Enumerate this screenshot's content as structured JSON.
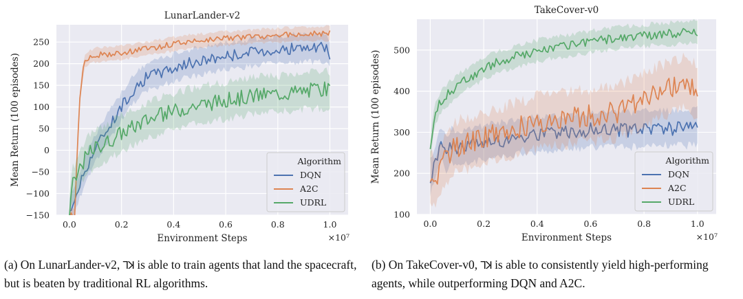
{
  "chart_data": [
    {
      "type": "line",
      "title": "LunarLander-v2",
      "xlabel": "Environment Steps",
      "ylabel": "Mean Return (100 episodes)",
      "x_multiplier_label": "×10⁷",
      "xlim": [
        -0.05,
        1.07
      ],
      "ylim": [
        -150,
        290
      ],
      "xticks": [
        0.0,
        0.2,
        0.4,
        0.6,
        0.8,
        1.0
      ],
      "xtick_labels": [
        "0.0",
        "0.2",
        "0.4",
        "0.6",
        "0.8",
        "1.0"
      ],
      "yticks": [
        -150,
        -100,
        -50,
        0,
        50,
        100,
        150,
        200,
        250
      ],
      "ytick_labels": [
        "−150",
        "−100",
        "−50",
        "0",
        "50",
        "100",
        "150",
        "200",
        "250"
      ],
      "legend": {
        "title": "Algorithm",
        "position": "lower-right"
      },
      "series": [
        {
          "name": "DQN",
          "color": "#4c72b0",
          "band": 30,
          "x": [
            0.0,
            0.02,
            0.04,
            0.06,
            0.08,
            0.1,
            0.12,
            0.14,
            0.16,
            0.18,
            0.2,
            0.22,
            0.24,
            0.26,
            0.28,
            0.3,
            0.35,
            0.4,
            0.45,
            0.5,
            0.55,
            0.6,
            0.65,
            0.7,
            0.75,
            0.8,
            0.85,
            0.9,
            0.95,
            0.98,
            1.0
          ],
          "y": [
            -150,
            -110,
            -80,
            -45,
            -20,
            5,
            25,
            45,
            65,
            80,
            100,
            120,
            135,
            150,
            160,
            170,
            180,
            190,
            200,
            205,
            212,
            218,
            222,
            226,
            230,
            232,
            235,
            236,
            235,
            238,
            218
          ]
        },
        {
          "name": "A2C",
          "color": "#dd8452",
          "band": 15,
          "x": [
            0.0,
            0.02,
            0.03,
            0.04,
            0.05,
            0.06,
            0.08,
            0.1,
            0.15,
            0.2,
            0.25,
            0.3,
            0.35,
            0.4,
            0.45,
            0.5,
            0.55,
            0.6,
            0.65,
            0.7,
            0.75,
            0.8,
            0.85,
            0.9,
            0.95,
            1.0
          ],
          "y": [
            -150,
            -150,
            0,
            120,
            180,
            205,
            215,
            220,
            222,
            225,
            230,
            235,
            240,
            245,
            250,
            253,
            256,
            258,
            260,
            262,
            264,
            266,
            268,
            269,
            270,
            270
          ]
        },
        {
          "name": "UDRL",
          "color": "#55a868",
          "band": 40,
          "x": [
            0.0,
            0.01,
            0.02,
            0.04,
            0.06,
            0.08,
            0.1,
            0.15,
            0.2,
            0.25,
            0.3,
            0.35,
            0.4,
            0.45,
            0.5,
            0.55,
            0.6,
            0.65,
            0.7,
            0.75,
            0.8,
            0.85,
            0.9,
            0.95,
            1.0
          ],
          "y": [
            -150,
            -70,
            -80,
            -40,
            -20,
            -5,
            5,
            20,
            40,
            55,
            70,
            80,
            90,
            98,
            105,
            110,
            115,
            120,
            125,
            128,
            130,
            133,
            136,
            140,
            140
          ]
        }
      ]
    },
    {
      "type": "line",
      "title": "TakeCover-v0",
      "xlabel": "Environment Steps",
      "ylabel": "Mean Return (100 episodes)",
      "x_multiplier_label": "×10⁷",
      "xlim": [
        -0.05,
        1.07
      ],
      "ylim": [
        100,
        575
      ],
      "xticks": [
        0.0,
        0.2,
        0.4,
        0.6,
        0.8,
        1.0
      ],
      "xtick_labels": [
        "0.0",
        "0.2",
        "0.4",
        "0.6",
        "0.8",
        "1.0"
      ],
      "yticks": [
        100,
        200,
        300,
        400,
        500
      ],
      "ytick_labels": [
        "100",
        "200",
        "300",
        "400",
        "500"
      ],
      "legend": {
        "title": "Algorithm",
        "position": "lower-right"
      },
      "series": [
        {
          "name": "DQN",
          "color": "#4c72b0",
          "band": 40,
          "x": [
            0.0,
            0.02,
            0.04,
            0.06,
            0.08,
            0.1,
            0.15,
            0.2,
            0.25,
            0.3,
            0.35,
            0.4,
            0.45,
            0.5,
            0.55,
            0.6,
            0.65,
            0.7,
            0.75,
            0.8,
            0.85,
            0.9,
            0.95,
            1.0
          ],
          "y": [
            190,
            230,
            270,
            250,
            270,
            260,
            270,
            275,
            280,
            285,
            290,
            295,
            298,
            300,
            302,
            305,
            307,
            308,
            305,
            310,
            312,
            310,
            308,
            312
          ]
        },
        {
          "name": "A2C",
          "color": "#dd8452",
          "band": 60,
          "x": [
            0.0,
            0.02,
            0.04,
            0.06,
            0.08,
            0.1,
            0.15,
            0.2,
            0.25,
            0.3,
            0.35,
            0.4,
            0.45,
            0.5,
            0.55,
            0.6,
            0.65,
            0.7,
            0.75,
            0.8,
            0.85,
            0.9,
            0.95,
            1.0
          ],
          "y": [
            185,
            180,
            210,
            240,
            255,
            265,
            275,
            285,
            295,
            305,
            315,
            325,
            330,
            335,
            338,
            340,
            345,
            350,
            365,
            380,
            395,
            410,
            420,
            400
          ]
        },
        {
          "name": "UDRL",
          "color": "#55a868",
          "band": 25,
          "x": [
            0.0,
            0.01,
            0.02,
            0.04,
            0.06,
            0.08,
            0.1,
            0.15,
            0.2,
            0.25,
            0.3,
            0.35,
            0.4,
            0.45,
            0.5,
            0.55,
            0.6,
            0.65,
            0.7,
            0.75,
            0.8,
            0.85,
            0.9,
            0.95,
            1.0
          ],
          "y": [
            255,
            320,
            350,
            375,
            390,
            400,
            415,
            435,
            455,
            470,
            480,
            490,
            498,
            505,
            510,
            515,
            520,
            525,
            530,
            533,
            535,
            538,
            540,
            542,
            545
          ]
        }
      ]
    }
  ],
  "captions": {
    "a": {
      "before": "(a) On LunarLander-v2, ",
      "glyph": "⅂ꓘ",
      "after": " is able to train agents that land the spacecraft, but is beaten by traditional RL algorithms."
    },
    "b": {
      "before": "(b) On TakeCover-v0, ",
      "glyph": "⅂ꓘ",
      "after": " is able to consistently yield high-performing agents, while outperforming DQN and A2C."
    }
  }
}
